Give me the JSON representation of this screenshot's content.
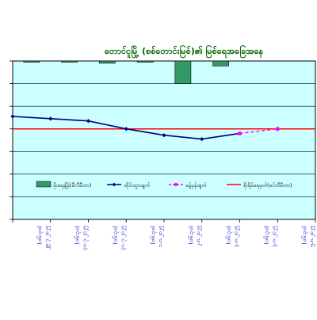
{
  "chart_data": {
    "type": "line",
    "title": "တောင်ငူမြို့ (စစ်တောင်းမြစ်)၏ မြစ်ရေအခြေအနေ",
    "xlabel": "",
    "ylabel": "",
    "x": [
      "၂၉.၇.၂၀၂၅",
      "၃၀.၇.၂၀၂၅",
      "၃၁.၇.၂၀၂၅",
      "၁.၈.၂၀၂၅",
      "၂.၈.၂၀၂၅",
      "၃.၈.၂၀၂၅",
      "၄.၈.၂၀၂၅",
      "၅.၈.၂၀၂၅"
    ],
    "x_tick_sublabel": "(၀၆:၃၀)",
    "ylim": [
      0,
      7
    ],
    "y_ticks_visible": false,
    "grid": true,
    "legend_position": "lower-left",
    "plot_background": "#ccffff",
    "series": [
      {
        "name": "မိုးရေချိန်(မီလီမီတာ)",
        "kind": "bar",
        "color": "#339966",
        "values": [
          6.98,
          6.98,
          6.9,
          6.98,
          6.0,
          6.78,
          null,
          null
        ],
        "baseline": 7
      },
      {
        "name": "ထိုင်းထွားချက်",
        "kind": "line",
        "color": "#000080",
        "marker": "diamond",
        "values": [
          4.55,
          4.45,
          4.35,
          4.0,
          3.72,
          3.55,
          3.8,
          null
        ]
      },
      {
        "name": "ခန့်မှန်းချက်",
        "kind": "line-dashed",
        "color": "#ff00ff",
        "marker": "circle",
        "values": [
          null,
          null,
          null,
          null,
          null,
          null,
          3.8,
          4.0
        ]
      },
      {
        "name": "စိုးရိမ်ရေမှတ်(စင်တီမီတာ)",
        "kind": "hline",
        "color": "#ff0000",
        "value": 4.0
      }
    ]
  }
}
